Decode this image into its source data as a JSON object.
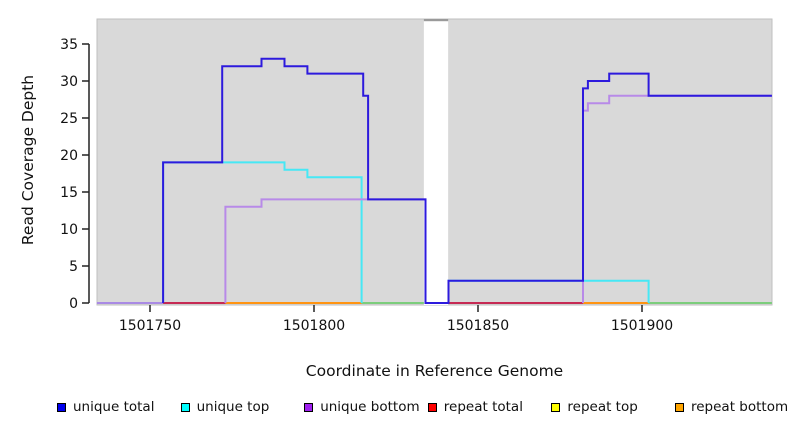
{
  "chart_data": {
    "type": "line",
    "subtype": "step-coverage-plot",
    "title": "",
    "xlabel": "Coordinate in Reference Genome",
    "ylabel": "Read Coverage Depth",
    "xlim": [
      1501733.8,
      1501939.6
    ],
    "ylim": [
      0,
      38.4
    ],
    "x_ticks": [
      1501750,
      1501800,
      1501850,
      1501900
    ],
    "x_tick_labels": [
      "1501750",
      "1501800",
      "1501850",
      "1501900"
    ],
    "y_ticks": [
      0,
      5,
      10,
      15,
      20,
      25,
      30,
      35
    ],
    "y_tick_labels": [
      "0",
      "5",
      "10",
      "15",
      "20",
      "25",
      "30",
      "35"
    ],
    "grid": "off",
    "plot_background": "#d9d9d9",
    "plot_border": "#bfbfbf",
    "gap_band": {
      "from": 1501833.5,
      "to": 1501840.9,
      "color": "#ffffff",
      "cap_color": "#9a9a9a"
    },
    "baseline_segments": [
      {
        "from": 1501733.8,
        "to": 1501754,
        "color": "#a98ae4"
      },
      {
        "from": 1501754,
        "to": 1501773,
        "color": "#c62a54"
      },
      {
        "from": 1501773,
        "to": 1501814.5,
        "color": "#ff9412"
      },
      {
        "from": 1501814.5,
        "to": 1501833.5,
        "color": "#7ccd7c"
      },
      {
        "from": 1501841,
        "to": 1501882,
        "color": "#c62a54"
      },
      {
        "from": 1501882,
        "to": 1501902,
        "color": "#ff9412"
      },
      {
        "from": 1501902,
        "to": 1501939.6,
        "color": "#7ccd7c"
      }
    ],
    "series": [
      {
        "name": "unique top",
        "color": "#46e8f5",
        "paths": [
          [
            [
              1501754,
              0
            ],
            [
              1501754,
              19
            ],
            [
              1501791,
              19
            ],
            [
              1501791,
              18
            ],
            [
              1501798,
              18
            ],
            [
              1501798,
              17
            ],
            [
              1501814.5,
              17
            ],
            [
              1501814.5,
              0
            ]
          ],
          [
            [
              1501841,
              0
            ],
            [
              1501841,
              3
            ],
            [
              1501902,
              3
            ],
            [
              1501902,
              0
            ]
          ]
        ]
      },
      {
        "name": "unique bottom",
        "color": "#b88ae8",
        "paths": [
          [
            [
              1501773,
              0
            ],
            [
              1501773,
              13
            ],
            [
              1501784,
              13
            ],
            [
              1501784,
              14
            ],
            [
              1501834,
              14
            ],
            [
              1501834,
              0
            ]
          ],
          [
            [
              1501882,
              0
            ],
            [
              1501882,
              26
            ],
            [
              1501883.5,
              26
            ],
            [
              1501883.5,
              27
            ],
            [
              1501890,
              27
            ],
            [
              1501890,
              28
            ],
            [
              1501939.6,
              28
            ]
          ]
        ]
      },
      {
        "name": "unique total",
        "color": "#2d1add",
        "paths": [
          [
            [
              1501754,
              0
            ],
            [
              1501754,
              19
            ],
            [
              1501772,
              19
            ],
            [
              1501772,
              32
            ],
            [
              1501784,
              32
            ],
            [
              1501784,
              33
            ],
            [
              1501791,
              33
            ],
            [
              1501791,
              32
            ],
            [
              1501798,
              32
            ],
            [
              1501798,
              31
            ],
            [
              1501815,
              31
            ],
            [
              1501815,
              28
            ],
            [
              1501816.5,
              28
            ],
            [
              1501816.5,
              14
            ],
            [
              1501834,
              14
            ],
            [
              1501834,
              0
            ],
            [
              1501841,
              0
            ],
            [
              1501841,
              3
            ],
            [
              1501882,
              3
            ],
            [
              1501882,
              29
            ],
            [
              1501883.5,
              29
            ],
            [
              1501883.5,
              30
            ],
            [
              1501890,
              30
            ],
            [
              1501890,
              31
            ],
            [
              1501902,
              31
            ],
            [
              1501902,
              28
            ],
            [
              1501939.6,
              28
            ]
          ]
        ]
      }
    ],
    "legend": [
      {
        "label": "unique total",
        "color": "#0000ee"
      },
      {
        "label": "unique top",
        "color": "#00ffff"
      },
      {
        "label": "unique bottom",
        "color": "#a020f0"
      },
      {
        "label": "repeat total",
        "color": "#ff0000"
      },
      {
        "label": "repeat top",
        "color": "#ffff00"
      },
      {
        "label": "repeat bottom",
        "color": "#ffa500"
      }
    ],
    "legend_position": "bottom"
  }
}
